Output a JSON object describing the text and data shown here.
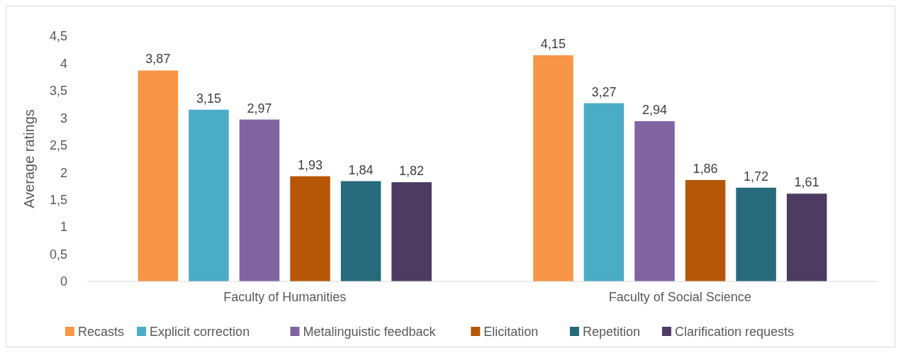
{
  "chart_data": {
    "type": "bar",
    "ylabel": "Average ratings",
    "categories": [
      "Faculty of Humanities",
      "Faculty of Social Science"
    ],
    "series": [
      {
        "name": "Recasts",
        "color": "#f79646",
        "values": [
          3.87,
          4.15
        ],
        "value_labels": [
          "3,87",
          "4,15"
        ]
      },
      {
        "name": "Explicit correction",
        "color": "#4bacc6",
        "values": [
          3.15,
          3.27
        ],
        "value_labels": [
          "3,15",
          "3,27"
        ]
      },
      {
        "name": "Metalinguistic feedback",
        "color": "#8064a2",
        "values": [
          2.97,
          2.94
        ],
        "value_labels": [
          "2,97",
          "2,94"
        ]
      },
      {
        "name": "Elicitation",
        "color": "#b65708",
        "values": [
          1.93,
          1.86
        ],
        "value_labels": [
          "1,93",
          "1,86"
        ]
      },
      {
        "name": "Repetition",
        "color": "#276a7c",
        "values": [
          1.84,
          1.72
        ],
        "value_labels": [
          "1,84",
          "1,72"
        ]
      },
      {
        "name": "Clarification requests",
        "color": "#4d3b62",
        "values": [
          1.82,
          1.61
        ],
        "value_labels": [
          "1,82",
          "1,61"
        ]
      }
    ],
    "ylim": [
      0,
      4.5
    ],
    "yticks": [
      0,
      {
        "value": 0.5,
        "label": "0,5"
      },
      1,
      {
        "value": 1.5,
        "label": "1,5"
      },
      2,
      {
        "value": 2.5,
        "label": "2,5"
      },
      3,
      {
        "value": 3.5,
        "label": "3,5"
      },
      4,
      {
        "value": 4.5,
        "label": "4,5"
      }
    ],
    "grid": false,
    "legend": "bottom"
  }
}
